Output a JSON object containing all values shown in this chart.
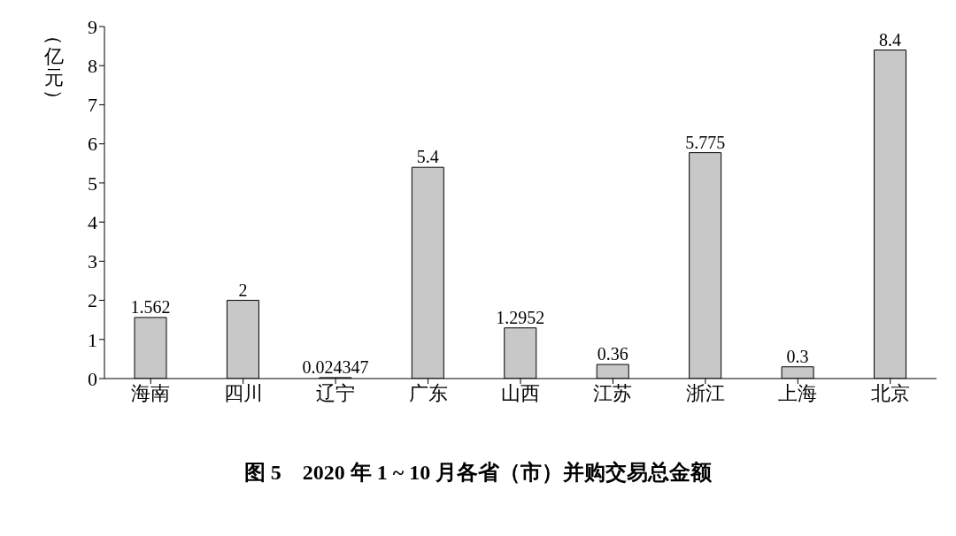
{
  "chart_data": {
    "type": "bar",
    "title": "图 5　2020 年 1 ~ 10 月各省（市）并购交易总金额",
    "ylabel": "（亿元）",
    "categories": [
      "海南",
      "四川",
      "辽宁",
      "广东",
      "山西",
      "江苏",
      "浙江",
      "上海",
      "北京"
    ],
    "values": [
      1.562,
      2,
      0.024347,
      5.4,
      1.2952,
      0.36,
      5.775,
      0.3,
      8.4
    ],
    "color": "#c8c8c8",
    "ylim": [
      0,
      9
    ],
    "yticks": [
      0,
      1,
      2,
      3,
      4,
      5,
      6,
      7,
      8,
      9
    ],
    "grid": false,
    "data_labels": true
  }
}
